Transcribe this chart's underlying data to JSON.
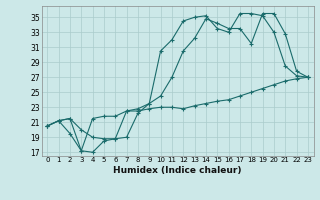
{
  "xlabel": "Humidex (Indice chaleur)",
  "bg_color": "#cce8e8",
  "grid_color": "#aacccc",
  "line_color": "#1a6b6b",
  "xlim": [
    -0.5,
    23.5
  ],
  "ylim": [
    16.5,
    36.5
  ],
  "xticks": [
    0,
    1,
    2,
    3,
    4,
    5,
    6,
    7,
    8,
    9,
    10,
    11,
    12,
    13,
    14,
    15,
    16,
    17,
    18,
    19,
    20,
    21,
    22,
    23
  ],
  "yticks": [
    17,
    19,
    21,
    23,
    25,
    27,
    29,
    31,
    33,
    35
  ],
  "line1_x": [
    0,
    1,
    2,
    3,
    4,
    5,
    6,
    7,
    8,
    9,
    10,
    11,
    12,
    13,
    14,
    15,
    16,
    17,
    18,
    19,
    20,
    21,
    22,
    23
  ],
  "line1_y": [
    20.5,
    21.2,
    21.5,
    20.0,
    19.0,
    18.8,
    18.8,
    19.0,
    22.2,
    23.5,
    30.5,
    32.0,
    34.5,
    35.0,
    35.2,
    33.5,
    33.0,
    35.5,
    35.5,
    35.2,
    33.0,
    28.5,
    27.2,
    27.0
  ],
  "line2_x": [
    0,
    1,
    2,
    3,
    4,
    5,
    6,
    7,
    8,
    9,
    10,
    11,
    12,
    13,
    14,
    15,
    16,
    17,
    18,
    19,
    20,
    21,
    22,
    23
  ],
  "line2_y": [
    20.5,
    21.2,
    21.5,
    17.2,
    17.0,
    18.5,
    18.8,
    22.5,
    22.8,
    23.5,
    24.5,
    27.0,
    30.5,
    32.2,
    34.8,
    34.2,
    33.5,
    33.5,
    31.5,
    35.5,
    35.5,
    32.8,
    27.8,
    27.0
  ],
  "line3_x": [
    0,
    1,
    2,
    3,
    4,
    5,
    6,
    7,
    8,
    9,
    10,
    11,
    12,
    13,
    14,
    15,
    16,
    17,
    18,
    19,
    20,
    21,
    22,
    23
  ],
  "line3_y": [
    20.5,
    21.2,
    19.5,
    17.2,
    21.5,
    21.8,
    21.8,
    22.5,
    22.5,
    22.8,
    23.0,
    23.0,
    22.8,
    23.2,
    23.5,
    23.8,
    24.0,
    24.5,
    25.0,
    25.5,
    26.0,
    26.5,
    26.8,
    27.0
  ]
}
